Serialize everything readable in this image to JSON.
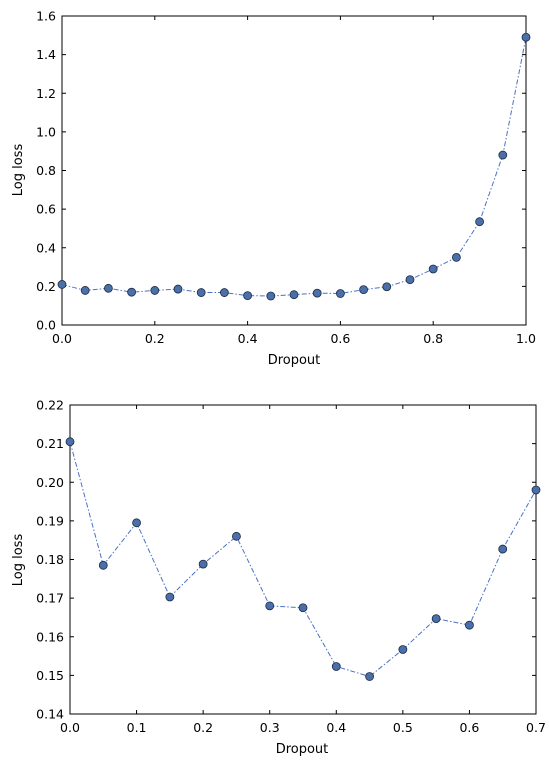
{
  "chart_data": [
    {
      "type": "line",
      "xlabel": "Dropout",
      "ylabel": "Log loss",
      "xlim": [
        0.0,
        1.0
      ],
      "ylim": [
        0.0,
        1.6
      ],
      "xticks": [
        "0.0",
        "0.2",
        "0.4",
        "0.6",
        "0.8",
        "1.0"
      ],
      "yticks": [
        "0.0",
        "0.2",
        "0.4",
        "0.6",
        "0.8",
        "1.0",
        "1.2",
        "1.4",
        "1.6"
      ],
      "grid": false,
      "line_style": "dash-dot",
      "marker": "circle",
      "colors": {
        "line": "#4a72c4",
        "marker_fill": "#4b6fa8",
        "marker_edge": "#1a2a44"
      },
      "series": [
        {
          "x": [
            0.0,
            0.05,
            0.1,
            0.15,
            0.2,
            0.25,
            0.3,
            0.35,
            0.4,
            0.45,
            0.5,
            0.55,
            0.6,
            0.65,
            0.7,
            0.75,
            0.8,
            0.85,
            0.9,
            0.95,
            1.0
          ],
          "y": [
            0.21,
            0.179,
            0.19,
            0.17,
            0.179,
            0.186,
            0.168,
            0.168,
            0.152,
            0.15,
            0.157,
            0.165,
            0.163,
            0.183,
            0.198,
            0.235,
            0.29,
            0.35,
            0.535,
            0.88,
            1.49
          ]
        }
      ]
    },
    {
      "type": "line",
      "xlabel": "Dropout",
      "ylabel": "Log loss",
      "xlim": [
        0.0,
        0.7
      ],
      "ylim": [
        0.14,
        0.22
      ],
      "xticks": [
        "0.0",
        "0.1",
        "0.2",
        "0.3",
        "0.4",
        "0.5",
        "0.6",
        "0.7"
      ],
      "yticks": [
        "0.14",
        "0.15",
        "0.16",
        "0.17",
        "0.18",
        "0.19",
        "0.20",
        "0.21",
        "0.22"
      ],
      "grid": false,
      "line_style": "dash-dot",
      "marker": "circle",
      "colors": {
        "line": "#4a72c4",
        "marker_fill": "#4b6fa8",
        "marker_edge": "#1a2a44"
      },
      "series": [
        {
          "x": [
            0.0,
            0.05,
            0.1,
            0.15,
            0.2,
            0.25,
            0.3,
            0.35,
            0.4,
            0.45,
            0.5,
            0.55,
            0.6,
            0.65,
            0.7
          ],
          "y": [
            0.2105,
            0.1785,
            0.1895,
            0.1703,
            0.1788,
            0.186,
            0.168,
            0.1675,
            0.1523,
            0.1497,
            0.1567,
            0.1647,
            0.163,
            0.1827,
            0.198
          ]
        }
      ]
    }
  ]
}
